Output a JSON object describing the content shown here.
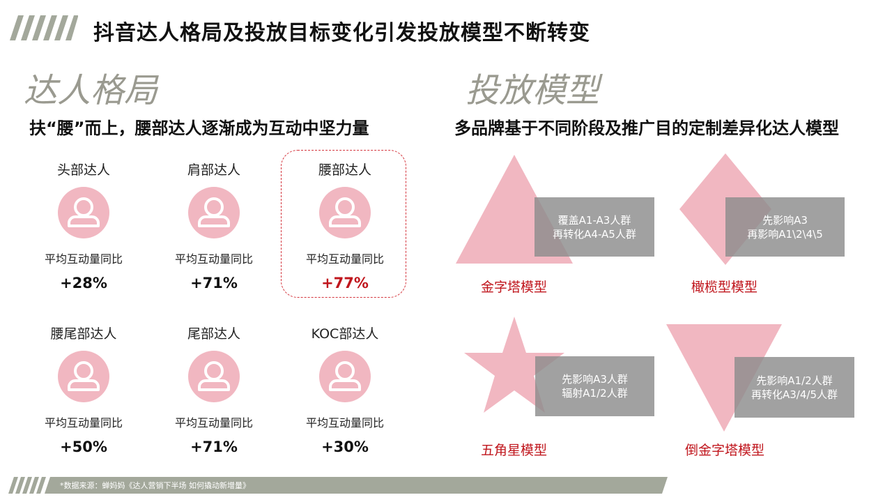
{
  "title": "抖音达人格局及投放目标变化引发投放模型不断转变",
  "left_section": {
    "heading": "达人格局",
    "subheading": "扶“腰”而上，腰部达人逐渐成为互动中坚力量",
    "influencers": [
      {
        "name": "头部达人",
        "metric": "平均互动量同比",
        "value": "+28%"
      },
      {
        "name": "肩部达人",
        "metric": "平均互动量同比",
        "value": "+71%"
      },
      {
        "name": "腰部达人",
        "metric": "平均互动量同比",
        "value": "+77%"
      },
      {
        "name": "腰尾部达人",
        "metric": "平均互动量同比",
        "value": "+50%"
      },
      {
        "name": "尾部达人",
        "metric": "平均互动量同比",
        "value": "+71%"
      },
      {
        "name": "KOC部达人",
        "metric": "平均互动量同比",
        "value": "+30%"
      }
    ]
  },
  "right_section": {
    "heading": "投放模型",
    "subheading": "多品牌基于不同阶段及推广目的定制差异化达人模型",
    "models": [
      {
        "label": "金字塔模型",
        "line1": "覆盖A1-A3人群",
        "line2": "再转化A4-A5人群",
        "shape": "triangle"
      },
      {
        "label": "橄榄型模型",
        "line1": "先影响A3",
        "line2": "再影响A1\\2\\4\\5",
        "shape": "diamond"
      },
      {
        "label": "五角星模型",
        "line1": "先影响A3人群",
        "line2": "辐射A1/2人群",
        "shape": "star"
      },
      {
        "label": "倒金字塔模型",
        "line1": "先影响A1/2人群",
        "line2": "再转化A3/4/5人群",
        "shape": "inverted-triangle"
      }
    ]
  },
  "footer": {
    "source": "*数据来源：蝉妈妈《达人营销下半场 如何撬动新增量》"
  },
  "colors": {
    "accent_red": "#c0161d",
    "pink": "#f1b7c1",
    "gray_box": "#8c8c8c",
    "stripe_gray": "#a3a89b"
  }
}
